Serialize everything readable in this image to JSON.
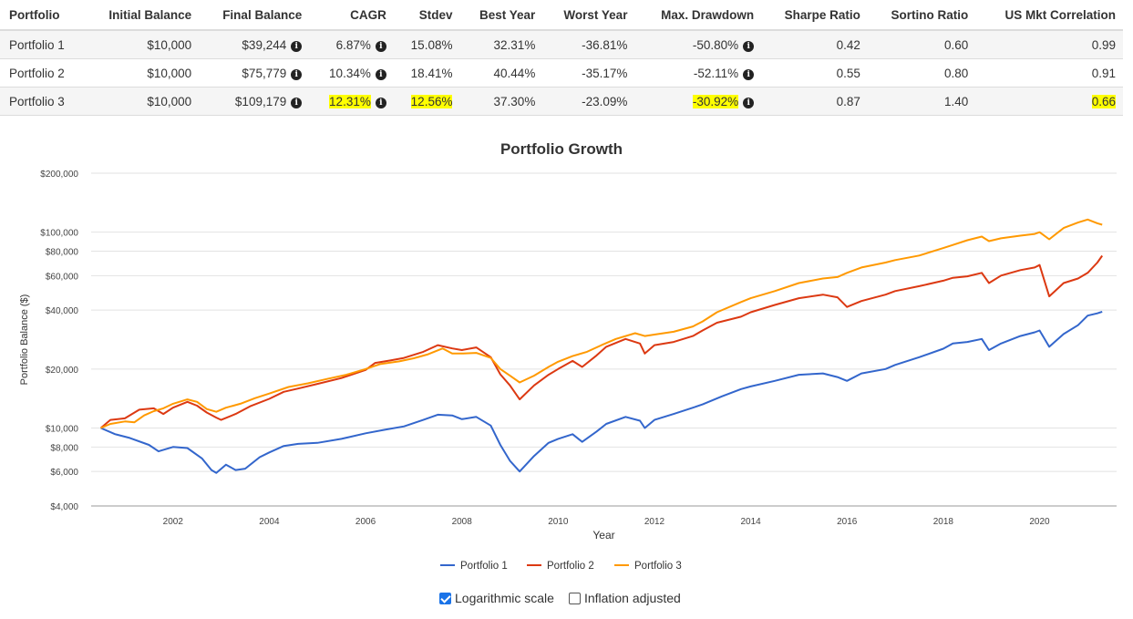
{
  "table": {
    "headers": [
      "Portfolio",
      "Initial Balance",
      "Final Balance",
      "CAGR",
      "Stdev",
      "Best Year",
      "Worst Year",
      "Max. Drawdown",
      "Sharpe Ratio",
      "Sortino Ratio",
      "US Mkt Correlation"
    ],
    "rows": [
      {
        "name": "Portfolio 1",
        "initial": "$10,000",
        "final": "$39,244",
        "cagr": "6.87%",
        "stdev": "15.08%",
        "best": "32.31%",
        "worst": "-36.81%",
        "drawdown": "-50.80%",
        "sharpe": "0.42",
        "sortino": "0.60",
        "corr": "0.99"
      },
      {
        "name": "Portfolio 2",
        "initial": "$10,000",
        "final": "$75,779",
        "cagr": "10.34%",
        "stdev": "18.41%",
        "best": "40.44%",
        "worst": "-35.17%",
        "drawdown": "-52.11%",
        "sharpe": "0.55",
        "sortino": "0.80",
        "corr": "0.91"
      },
      {
        "name": "Portfolio 3",
        "initial": "$10,000",
        "final": "$109,179",
        "cagr": "12.31%",
        "stdev": "12.56%",
        "best": "37.30%",
        "worst": "-23.09%",
        "drawdown": "-30.92%",
        "sharpe": "0.87",
        "sortino": "1.40",
        "corr": "0.66"
      }
    ],
    "highlight_color": "#ffff00"
  },
  "controls": {
    "log_scale_label": "Logarithmic scale",
    "log_scale_checked": true,
    "inflation_label": "Inflation adjusted",
    "inflation_checked": false
  },
  "chart_data": {
    "type": "line",
    "title": "Portfolio Growth",
    "xlabel": "Year",
    "ylabel": "Portfolio Balance ($)",
    "y_scale": "log",
    "ylim": [
      4000,
      200000
    ],
    "xlim": [
      2000.3,
      2021.6
    ],
    "y_ticks": [
      4000,
      6000,
      8000,
      10000,
      20000,
      40000,
      60000,
      80000,
      100000,
      200000
    ],
    "y_tick_labels": [
      "$4,000",
      "$6,000",
      "$8,000",
      "$10,000",
      "$20,000",
      "$40,000",
      "$60,000",
      "$80,000",
      "$100,000",
      "$200,000"
    ],
    "x_ticks": [
      2002,
      2004,
      2006,
      2008,
      2010,
      2012,
      2014,
      2016,
      2018,
      2020
    ],
    "x_tick_labels": [
      "2002",
      "2004",
      "2006",
      "2008",
      "2010",
      "2012",
      "2014",
      "2016",
      "2018",
      "2020"
    ],
    "grid": true,
    "legend": "bottom",
    "series": [
      {
        "name": "Portfolio 1",
        "color": "#3366cc",
        "points": [
          [
            2000.5,
            10000
          ],
          [
            2000.8,
            9300
          ],
          [
            2001.1,
            8900
          ],
          [
            2001.5,
            8200
          ],
          [
            2001.7,
            7600
          ],
          [
            2002.0,
            8000
          ],
          [
            2002.3,
            7900
          ],
          [
            2002.6,
            7000
          ],
          [
            2002.8,
            6100
          ],
          [
            2002.9,
            5900
          ],
          [
            2003.1,
            6500
          ],
          [
            2003.3,
            6100
          ],
          [
            2003.5,
            6200
          ],
          [
            2003.8,
            7100
          ],
          [
            2004.0,
            7500
          ],
          [
            2004.3,
            8100
          ],
          [
            2004.6,
            8300
          ],
          [
            2005.0,
            8400
          ],
          [
            2005.5,
            8800
          ],
          [
            2006.0,
            9400
          ],
          [
            2006.4,
            9800
          ],
          [
            2006.8,
            10200
          ],
          [
            2007.2,
            11000
          ],
          [
            2007.5,
            11700
          ],
          [
            2007.8,
            11600
          ],
          [
            2008.0,
            11100
          ],
          [
            2008.3,
            11400
          ],
          [
            2008.6,
            10300
          ],
          [
            2008.8,
            8200
          ],
          [
            2009.0,
            6800
          ],
          [
            2009.2,
            6000
          ],
          [
            2009.5,
            7200
          ],
          [
            2009.8,
            8400
          ],
          [
            2010.0,
            8800
          ],
          [
            2010.3,
            9300
          ],
          [
            2010.5,
            8500
          ],
          [
            2010.8,
            9600
          ],
          [
            2011.0,
            10500
          ],
          [
            2011.4,
            11400
          ],
          [
            2011.7,
            10900
          ],
          [
            2011.8,
            10000
          ],
          [
            2012.0,
            11000
          ],
          [
            2012.4,
            11800
          ],
          [
            2012.8,
            12700
          ],
          [
            2013.0,
            13200
          ],
          [
            2013.4,
            14500
          ],
          [
            2013.8,
            15800
          ],
          [
            2014.0,
            16300
          ],
          [
            2014.5,
            17400
          ],
          [
            2015.0,
            18700
          ],
          [
            2015.5,
            19000
          ],
          [
            2015.8,
            18200
          ],
          [
            2016.0,
            17400
          ],
          [
            2016.3,
            19000
          ],
          [
            2016.8,
            20000
          ],
          [
            2017.0,
            21000
          ],
          [
            2017.5,
            23000
          ],
          [
            2018.0,
            25400
          ],
          [
            2018.2,
            27000
          ],
          [
            2018.5,
            27500
          ],
          [
            2018.8,
            28500
          ],
          [
            2018.95,
            25000
          ],
          [
            2019.2,
            27000
          ],
          [
            2019.6,
            29500
          ],
          [
            2019.9,
            30800
          ],
          [
            2020.0,
            31500
          ],
          [
            2020.2,
            26000
          ],
          [
            2020.5,
            30200
          ],
          [
            2020.8,
            33500
          ],
          [
            2021.0,
            37500
          ],
          [
            2021.2,
            38500
          ],
          [
            2021.3,
            39244
          ]
        ]
      },
      {
        "name": "Portfolio 2",
        "color": "#dc3912",
        "points": [
          [
            2000.5,
            10000
          ],
          [
            2000.7,
            11000
          ],
          [
            2001.0,
            11200
          ],
          [
            2001.3,
            12400
          ],
          [
            2001.6,
            12600
          ],
          [
            2001.8,
            11800
          ],
          [
            2002.0,
            12700
          ],
          [
            2002.3,
            13600
          ],
          [
            2002.5,
            13000
          ],
          [
            2002.7,
            12000
          ],
          [
            2002.9,
            11300
          ],
          [
            2003.0,
            11000
          ],
          [
            2003.3,
            11800
          ],
          [
            2003.6,
            12900
          ],
          [
            2004.0,
            14100
          ],
          [
            2004.3,
            15300
          ],
          [
            2004.6,
            15900
          ],
          [
            2005.0,
            16800
          ],
          [
            2005.5,
            18000
          ],
          [
            2006.0,
            19800
          ],
          [
            2006.2,
            21500
          ],
          [
            2006.5,
            22100
          ],
          [
            2006.8,
            22800
          ],
          [
            2007.2,
            24500
          ],
          [
            2007.5,
            26500
          ],
          [
            2007.8,
            25500
          ],
          [
            2008.0,
            25000
          ],
          [
            2008.3,
            25800
          ],
          [
            2008.6,
            23000
          ],
          [
            2008.8,
            18800
          ],
          [
            2009.0,
            16500
          ],
          [
            2009.2,
            14000
          ],
          [
            2009.5,
            16500
          ],
          [
            2009.8,
            18700
          ],
          [
            2010.0,
            20000
          ],
          [
            2010.3,
            22000
          ],
          [
            2010.5,
            20500
          ],
          [
            2010.8,
            23500
          ],
          [
            2011.0,
            26000
          ],
          [
            2011.4,
            28500
          ],
          [
            2011.7,
            27000
          ],
          [
            2011.8,
            24000
          ],
          [
            2012.0,
            26500
          ],
          [
            2012.4,
            27500
          ],
          [
            2012.8,
            29500
          ],
          [
            2013.0,
            31500
          ],
          [
            2013.3,
            34500
          ],
          [
            2013.8,
            37000
          ],
          [
            2014.0,
            39000
          ],
          [
            2014.5,
            42500
          ],
          [
            2015.0,
            46000
          ],
          [
            2015.5,
            48000
          ],
          [
            2015.8,
            46500
          ],
          [
            2016.0,
            41500
          ],
          [
            2016.3,
            44500
          ],
          [
            2016.8,
            48000
          ],
          [
            2017.0,
            50000
          ],
          [
            2017.5,
            53000
          ],
          [
            2018.0,
            56500
          ],
          [
            2018.2,
            58500
          ],
          [
            2018.5,
            59500
          ],
          [
            2018.8,
            62000
          ],
          [
            2018.95,
            55000
          ],
          [
            2019.2,
            60000
          ],
          [
            2019.6,
            64000
          ],
          [
            2019.9,
            66000
          ],
          [
            2020.0,
            68000
          ],
          [
            2020.2,
            47000
          ],
          [
            2020.5,
            55000
          ],
          [
            2020.8,
            58000
          ],
          [
            2021.0,
            62000
          ],
          [
            2021.2,
            70000
          ],
          [
            2021.3,
            75779
          ]
        ]
      },
      {
        "name": "Portfolio 3",
        "color": "#ff9900",
        "points": [
          [
            2000.5,
            10000
          ],
          [
            2000.7,
            10500
          ],
          [
            2001.0,
            10800
          ],
          [
            2001.2,
            10700
          ],
          [
            2001.4,
            11600
          ],
          [
            2001.6,
            12200
          ],
          [
            2001.8,
            12600
          ],
          [
            2002.0,
            13300
          ],
          [
            2002.3,
            14000
          ],
          [
            2002.5,
            13600
          ],
          [
            2002.7,
            12500
          ],
          [
            2002.9,
            12100
          ],
          [
            2003.1,
            12700
          ],
          [
            2003.4,
            13300
          ],
          [
            2003.7,
            14200
          ],
          [
            2004.0,
            15000
          ],
          [
            2004.4,
            16200
          ],
          [
            2004.8,
            16900
          ],
          [
            2005.2,
            17800
          ],
          [
            2005.6,
            18700
          ],
          [
            2006.0,
            20000
          ],
          [
            2006.3,
            21200
          ],
          [
            2006.7,
            21900
          ],
          [
            2007.0,
            22700
          ],
          [
            2007.3,
            23800
          ],
          [
            2007.6,
            25500
          ],
          [
            2007.8,
            24000
          ],
          [
            2008.0,
            24000
          ],
          [
            2008.3,
            24200
          ],
          [
            2008.6,
            22800
          ],
          [
            2008.8,
            20000
          ],
          [
            2009.0,
            18500
          ],
          [
            2009.2,
            17100
          ],
          [
            2009.5,
            18500
          ],
          [
            2009.8,
            20500
          ],
          [
            2010.0,
            21800
          ],
          [
            2010.3,
            23300
          ],
          [
            2010.6,
            24500
          ],
          [
            2010.9,
            26500
          ],
          [
            2011.2,
            28500
          ],
          [
            2011.6,
            30500
          ],
          [
            2011.8,
            29500
          ],
          [
            2012.0,
            30000
          ],
          [
            2012.4,
            31000
          ],
          [
            2012.8,
            33000
          ],
          [
            2013.0,
            35000
          ],
          [
            2013.3,
            39000
          ],
          [
            2013.8,
            44000
          ],
          [
            2014.0,
            46000
          ],
          [
            2014.5,
            50000
          ],
          [
            2015.0,
            55000
          ],
          [
            2015.5,
            58000
          ],
          [
            2015.8,
            59000
          ],
          [
            2016.0,
            62000
          ],
          [
            2016.3,
            66000
          ],
          [
            2016.8,
            70000
          ],
          [
            2017.0,
            72000
          ],
          [
            2017.5,
            76000
          ],
          [
            2018.0,
            83000
          ],
          [
            2018.2,
            86000
          ],
          [
            2018.5,
            91000
          ],
          [
            2018.8,
            95000
          ],
          [
            2018.95,
            90000
          ],
          [
            2019.2,
            93000
          ],
          [
            2019.6,
            96000
          ],
          [
            2019.9,
            98000
          ],
          [
            2020.0,
            100000
          ],
          [
            2020.2,
            92000
          ],
          [
            2020.5,
            105000
          ],
          [
            2020.8,
            112000
          ],
          [
            2021.0,
            116000
          ],
          [
            2021.2,
            111000
          ],
          [
            2021.3,
            109179
          ]
        ]
      }
    ]
  }
}
